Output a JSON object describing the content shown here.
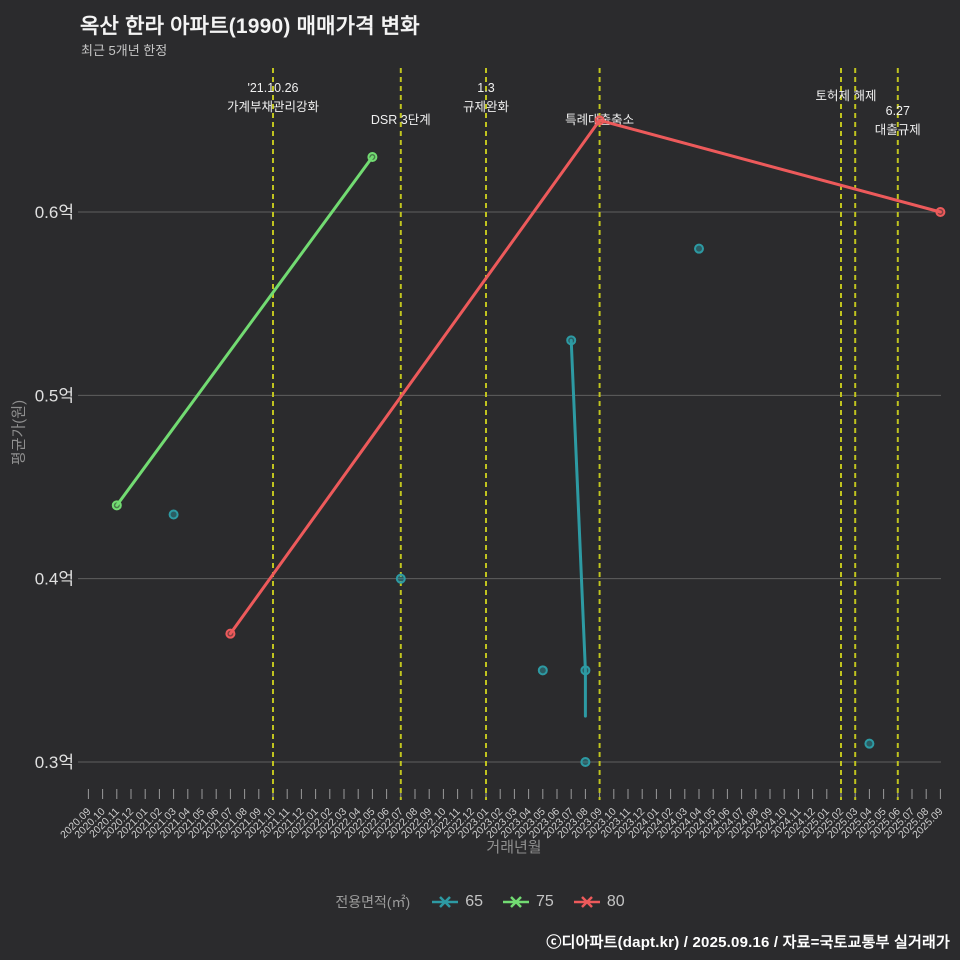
{
  "header": {
    "title": "옥산 한라 아파트(1990) 매매가격 변화",
    "subtitle": "최근 5개년 한정"
  },
  "footer": {
    "credit": "ⓒ디아파트(dapt.kr) / 2025.09.16 / 자료=국토교통부 실거래가"
  },
  "legend": {
    "title": "전용면적(㎡)",
    "items": [
      {
        "label": "65",
        "color": "#2d9aa3"
      },
      {
        "label": "75",
        "color": "#72db72"
      },
      {
        "label": "80",
        "color": "#ed5a5b"
      }
    ]
  },
  "chart_data": {
    "type": "line",
    "title": "옥산 한라 아파트(1990) 매매가격 변화",
    "subtitle": "최근 5개년 한정",
    "xlabel": "거래년월",
    "ylabel": "평균가(원)",
    "grid": true,
    "ylim": [
      0.28,
      0.68
    ],
    "y_tick_values": [
      0.6,
      0.5,
      0.4,
      0.3
    ],
    "y_tick_labels": [
      "0.6억",
      "0.5억",
      "0.4억",
      "0.3억"
    ],
    "x_categories": [
      "2020.09",
      "2020.10",
      "2020.11",
      "2020.12",
      "2021.01",
      "2021.02",
      "2021.03",
      "2021.04",
      "2021.05",
      "2021.06",
      "2021.07",
      "2021.08",
      "2021.09",
      "2021.10",
      "2021.11",
      "2021.12",
      "2022.01",
      "2022.02",
      "2022.03",
      "2022.04",
      "2022.05",
      "2022.06",
      "2022.07",
      "2022.08",
      "2022.09",
      "2022.10",
      "2022.11",
      "2022.12",
      "2023.01",
      "2023.02",
      "2023.03",
      "2023.04",
      "2023.05",
      "2023.06",
      "2023.07",
      "2023.08",
      "2023.09",
      "2023.10",
      "2023.11",
      "2023.12",
      "2024.01",
      "2024.02",
      "2024.03",
      "2024.04",
      "2024.05",
      "2024.06",
      "2024.07",
      "2024.08",
      "2024.09",
      "2024.10",
      "2024.11",
      "2024.12",
      "2025.01",
      "2025.02",
      "2025.03",
      "2025.04",
      "2025.05",
      "2025.06",
      "2025.07",
      "2025.08",
      "2025.09"
    ],
    "series": [
      {
        "name": "65",
        "color": "#2d9aa3",
        "line_points": [
          {
            "x": "2023.07",
            "v": 0.53
          },
          {
            "x": "2023.08",
            "v": 0.35
          },
          {
            "x": "2023.08",
            "v": 0.325,
            "marker": false
          }
        ],
        "isolated_points": [
          {
            "x": "2021.03",
            "v": 0.435
          },
          {
            "x": "2022.07",
            "v": 0.4
          },
          {
            "x": "2023.05",
            "v": 0.35
          },
          {
            "x": "2023.08",
            "v": 0.3
          },
          {
            "x": "2024.04",
            "v": 0.58
          },
          {
            "x": "2025.04",
            "v": 0.31
          }
        ]
      },
      {
        "name": "75",
        "color": "#72db72",
        "line_points": [
          {
            "x": "2020.11",
            "v": 0.44
          },
          {
            "x": "2022.05",
            "v": 0.63
          }
        ],
        "isolated_points": []
      },
      {
        "name": "80",
        "color": "#ed5a5b",
        "line_points": [
          {
            "x": "2021.07",
            "v": 0.37
          },
          {
            "x": "2023.09",
            "v": 0.65
          },
          {
            "x": "2025.09",
            "v": 0.6
          }
        ],
        "isolated_points": []
      }
    ],
    "event_lines": [
      {
        "x": "2021.10",
        "label_lines": [
          "'21.10.26",
          "가계부채관리강화"
        ],
        "label_top": 80,
        "label_dx": 0
      },
      {
        "x": "2022.07",
        "label_lines": [
          "DSR 3단계"
        ],
        "label_top": 112,
        "label_dx": 0
      },
      {
        "x": "2023.01",
        "label_lines": [
          "1.3",
          "규제완화"
        ],
        "label_top": 80,
        "label_dx": 0
      },
      {
        "x": "2023.09",
        "label_lines": [
          "특례대출축소"
        ],
        "label_top": 112,
        "label_dx": 0
      },
      {
        "x": "2025.02",
        "label_lines": [
          "토허제 해제"
        ],
        "label_top": 88,
        "label_dx": 5
      },
      {
        "x": "2025.03",
        "label_lines": [],
        "label_top": 0,
        "label_dx": 0
      },
      {
        "x": "2025.06",
        "label_lines": [
          "6.27",
          "대출규제"
        ],
        "label_top": 103,
        "label_dx": 0
      }
    ],
    "colors": {
      "background": "#2b2b2d",
      "gridline": "#5f5f5f",
      "event_line": "#c0c41f",
      "axis_tick": "#9a9a9a",
      "x_tick_label": "#cfcfcf",
      "y_tick_label": "#e0e0e0",
      "annotation_text": "#efefef"
    }
  }
}
